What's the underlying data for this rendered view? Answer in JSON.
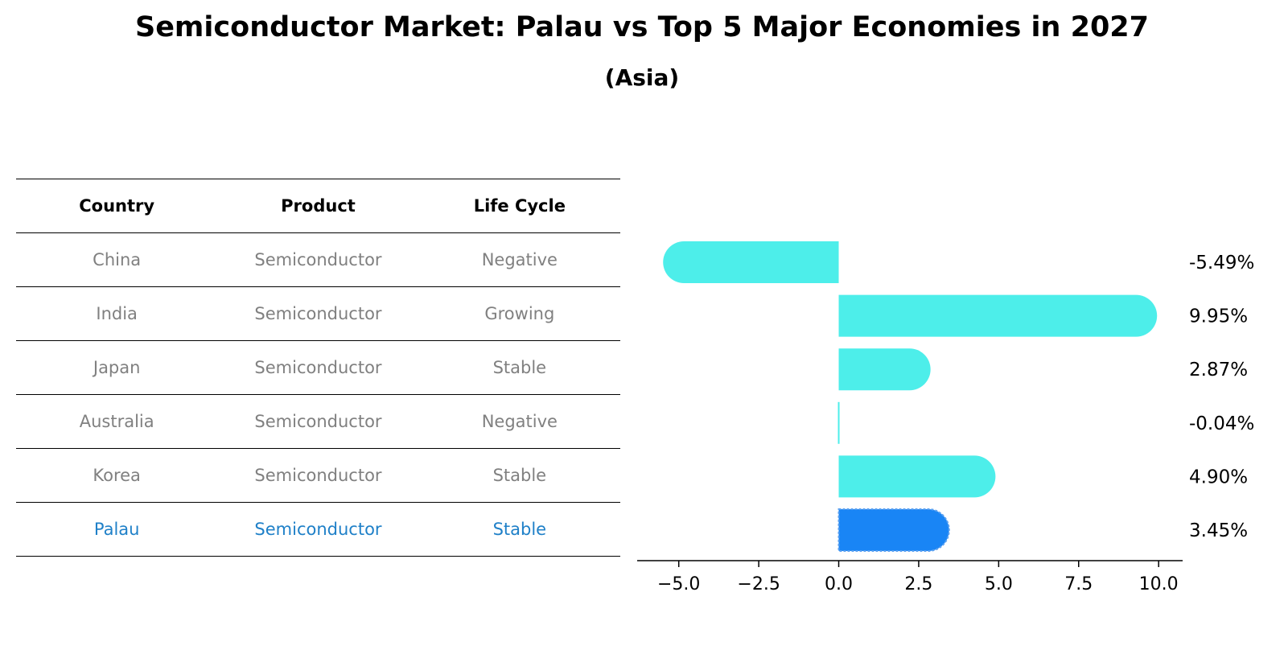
{
  "title": "Semiconductor Market: Palau vs Top 5 Major Economies in 2027",
  "subtitle": "(Asia)",
  "table": {
    "headers": [
      "Country",
      "Product",
      "Life Cycle"
    ],
    "rows": [
      {
        "country": "China",
        "product": "Semiconductor",
        "life_cycle": "Negative",
        "highlight": false
      },
      {
        "country": "India",
        "product": "Semiconductor",
        "life_cycle": "Growing",
        "highlight": false
      },
      {
        "country": "Japan",
        "product": "Semiconductor",
        "life_cycle": "Stable",
        "highlight": false
      },
      {
        "country": "Australia",
        "product": "Semiconductor",
        "life_cycle": "Negative",
        "highlight": false
      },
      {
        "country": "Korea",
        "product": "Semiconductor",
        "life_cycle": "Stable",
        "highlight": false
      },
      {
        "country": "Palau",
        "product": "Semiconductor",
        "life_cycle": "Stable",
        "highlight": true
      }
    ],
    "colors": {
      "normal_text": "#808080",
      "highlight_text": "#1f80c8"
    }
  },
  "chart_data": {
    "type": "bar",
    "orientation": "horizontal",
    "categories": [
      "China",
      "India",
      "Japan",
      "Australia",
      "Korea",
      "Palau"
    ],
    "values": [
      -5.49,
      9.95,
      2.87,
      -0.04,
      4.9,
      3.45
    ],
    "value_labels": [
      "-5.49%",
      "9.95%",
      "2.87%",
      "-0.04%",
      "4.90%",
      "3.45%"
    ],
    "highlight_index": 5,
    "colors": {
      "bar": "#4deeea",
      "highlight": "#1985f5"
    },
    "xlim": [
      -6.3,
      10.75
    ],
    "xticks": [
      -5.0,
      -2.5,
      0.0,
      2.5,
      5.0,
      7.5,
      10.0
    ],
    "xtick_labels": [
      "−5.0",
      "−2.5",
      "0.0",
      "2.5",
      "5.0",
      "7.5",
      "10.0"
    ],
    "grid": false,
    "legend": "none",
    "xlabel": "",
    "ylabel": ""
  }
}
